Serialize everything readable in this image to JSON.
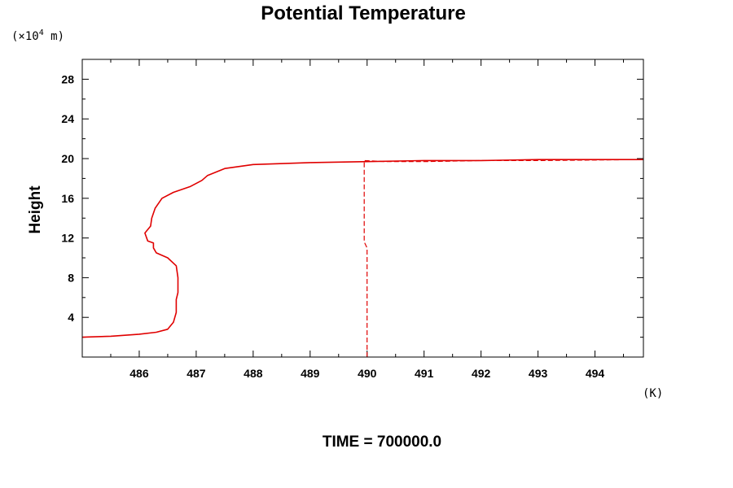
{
  "chart_data": {
    "type": "line",
    "title": "Potential Temperature",
    "ylabel": "Height",
    "yunit_prefix": "(×10",
    "yunit_exp": "4",
    "yunit_suffix": " m)",
    "xunit": "(K)",
    "footer": "TIME = 700000.0",
    "xlim": [
      485,
      494.85
    ],
    "ylim": [
      0,
      30
    ],
    "x_ticks": [
      "486",
      "487",
      "488",
      "489",
      "490",
      "491",
      "492",
      "493",
      "494"
    ],
    "y_ticks": [
      "4",
      "8",
      "12",
      "16",
      "20",
      "24",
      "28"
    ],
    "line_color": "#e00000",
    "series": [
      {
        "style": "solid",
        "points": [
          [
            485.0,
            2.0
          ],
          [
            485.5,
            2.1
          ],
          [
            486.0,
            2.3
          ],
          [
            486.3,
            2.5
          ],
          [
            486.5,
            2.8
          ],
          [
            486.6,
            3.5
          ],
          [
            486.65,
            4.5
          ],
          [
            486.65,
            5.8
          ],
          [
            486.68,
            6.5
          ],
          [
            486.68,
            8.0
          ],
          [
            486.65,
            9.2
          ],
          [
            486.5,
            10.0
          ],
          [
            486.3,
            10.5
          ],
          [
            486.25,
            11.0
          ],
          [
            486.25,
            11.5
          ],
          [
            486.15,
            11.7
          ],
          [
            486.1,
            12.5
          ],
          [
            486.2,
            13.2
          ],
          [
            486.22,
            14.0
          ],
          [
            486.28,
            15.0
          ],
          [
            486.4,
            16.0
          ],
          [
            486.6,
            16.6
          ],
          [
            486.9,
            17.2
          ],
          [
            487.1,
            17.8
          ],
          [
            487.2,
            18.3
          ],
          [
            487.5,
            19.0
          ],
          [
            488.0,
            19.4
          ],
          [
            489.0,
            19.6
          ],
          [
            490.0,
            19.7
          ],
          [
            491.0,
            19.8
          ],
          [
            492.0,
            19.8
          ],
          [
            493.0,
            19.9
          ],
          [
            494.85,
            19.9
          ]
        ]
      },
      {
        "style": "dashed",
        "points": [
          [
            490.0,
            0.0
          ],
          [
            490.0,
            11.0
          ],
          [
            489.95,
            11.6
          ],
          [
            489.95,
            19.8
          ],
          [
            490.3,
            19.7
          ],
          [
            491.0,
            19.7
          ],
          [
            492.0,
            19.8
          ],
          [
            493.0,
            19.8
          ],
          [
            494.85,
            19.9
          ]
        ]
      }
    ]
  }
}
